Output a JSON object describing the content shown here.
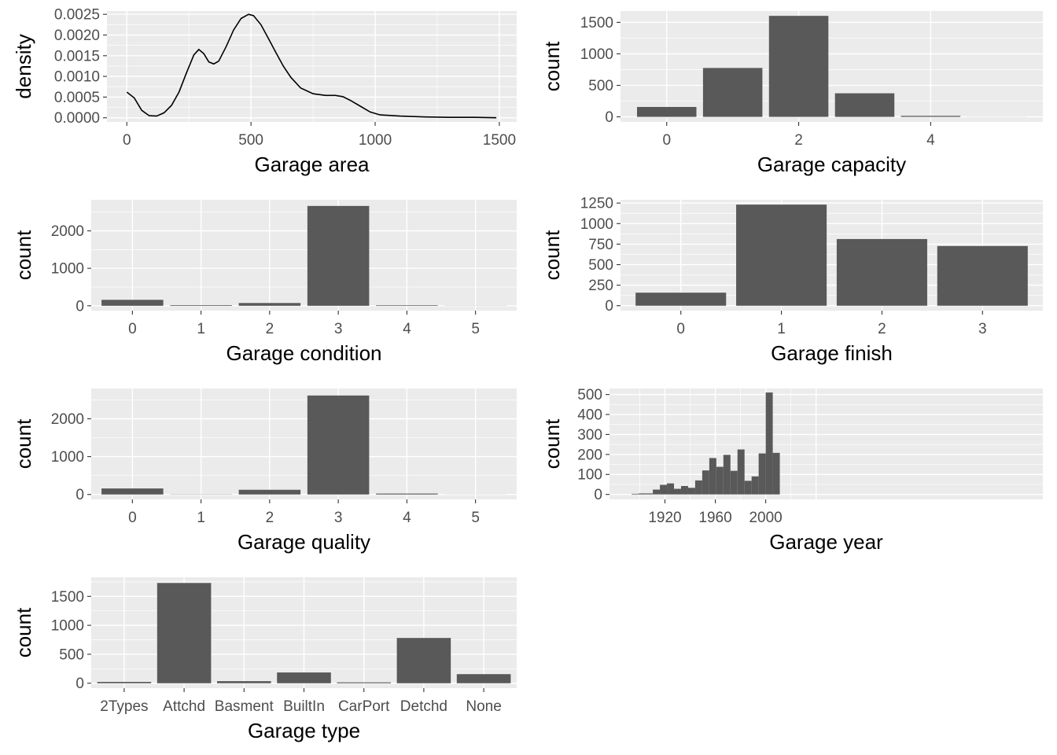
{
  "chart_data": [
    {
      "id": "area",
      "type": "line",
      "xlabel": "Garage area",
      "ylabel": "density",
      "xlim": [
        -80,
        1570
      ],
      "ylim": [
        -0.0001,
        0.00258
      ],
      "xticks": [
        0,
        500,
        1000,
        1500
      ],
      "xtick_labels": [
        "0",
        "500",
        "1000",
        "1500"
      ],
      "yticks": [
        0,
        0.0005,
        0.001,
        0.0015,
        0.002,
        0.0025
      ],
      "ytick_labels": [
        "0.0000",
        "0.0005",
        "0.0010",
        "0.0015",
        "0.0020",
        "0.0025"
      ],
      "x": [
        0,
        30,
        60,
        90,
        120,
        150,
        180,
        210,
        240,
        270,
        290,
        310,
        330,
        350,
        370,
        400,
        430,
        460,
        490,
        510,
        540,
        570,
        600,
        630,
        660,
        700,
        750,
        800,
        840,
        870,
        900,
        940,
        980,
        1020,
        1100,
        1200,
        1300,
        1400,
        1488
      ],
      "y": [
        0.00062,
        0.00048,
        0.00018,
        5e-05,
        4e-05,
        0.00012,
        0.0003,
        0.00062,
        0.00108,
        0.00152,
        0.00165,
        0.00155,
        0.00135,
        0.0013,
        0.00137,
        0.00172,
        0.00212,
        0.0024,
        0.0025,
        0.00247,
        0.00225,
        0.00192,
        0.00158,
        0.00125,
        0.00098,
        0.00072,
        0.00058,
        0.00054,
        0.00054,
        0.00051,
        0.00042,
        0.00028,
        0.00014,
        7e-05,
        4e-05,
        2e-05,
        1e-05,
        1e-05,
        0
      ]
    },
    {
      "id": "capacity",
      "type": "bar",
      "xlabel": "Garage capacity",
      "ylabel": "count",
      "xlim": [
        -0.7,
        5.7
      ],
      "ylim": [
        -80,
        1680
      ],
      "xticks": [
        0,
        2,
        4
      ],
      "xtick_labels": [
        "0",
        "2",
        "4"
      ],
      "yticks": [
        0,
        500,
        1000,
        1500
      ],
      "ytick_labels": [
        "0",
        "500",
        "1000",
        "1500"
      ],
      "categories": [
        0,
        1,
        2,
        3,
        4,
        5
      ],
      "values": [
        157,
        776,
        1603,
        374,
        16,
        1
      ]
    },
    {
      "id": "condition",
      "type": "bar",
      "xlabel": "Garage condition",
      "ylabel": "count",
      "xlim": [
        -0.6,
        5.6
      ],
      "ylim": [
        -130,
        2830
      ],
      "xticks": [
        0,
        1,
        2,
        3,
        4,
        5
      ],
      "xtick_labels": [
        "0",
        "1",
        "2",
        "3",
        "4",
        "5"
      ],
      "yticks": [
        0,
        1000,
        2000
      ],
      "ytick_labels": [
        "0",
        "1000",
        "2000"
      ],
      "categories": [
        0,
        1,
        2,
        3,
        4,
        5
      ],
      "values": [
        159,
        17,
        74,
        2665,
        15,
        3
      ]
    },
    {
      "id": "finish",
      "type": "bar",
      "xlabel": "Garage finish",
      "ylabel": "count",
      "xlim": [
        -0.6,
        3.6
      ],
      "ylim": [
        -60,
        1290
      ],
      "xticks": [
        0,
        1,
        2,
        3
      ],
      "xtick_labels": [
        "0",
        "1",
        "2",
        "3"
      ],
      "yticks": [
        0,
        250,
        500,
        750,
        1000,
        1250
      ],
      "ytick_labels": [
        "0",
        "250",
        "500",
        "750",
        "1000",
        "1250"
      ],
      "categories": [
        0,
        1,
        2,
        3
      ],
      "values": [
        159,
        1231,
        812,
        727
      ]
    },
    {
      "id": "quality",
      "type": "bar",
      "xlabel": "Garage quality",
      "ylabel": "count",
      "xlim": [
        -0.6,
        5.6
      ],
      "ylim": [
        -130,
        2800
      ],
      "xticks": [
        0,
        1,
        2,
        3,
        4,
        5
      ],
      "xtick_labels": [
        "0",
        "1",
        "2",
        "3",
        "4",
        "5"
      ],
      "yticks": [
        0,
        1000,
        2000
      ],
      "ytick_labels": [
        "0",
        "1000",
        "2000"
      ],
      "categories": [
        0,
        1,
        2,
        3,
        4,
        5
      ],
      "values": [
        159,
        5,
        124,
        2615,
        24,
        2
      ]
    },
    {
      "id": "year",
      "type": "bar",
      "xlabel": "Garage year",
      "ylabel": "count",
      "xlim": [
        1876,
        2220
      ],
      "ylim": [
        -25,
        530
      ],
      "xticks": [
        1920,
        1960,
        2000
      ],
      "xtick_labels": [
        "1920",
        "1960",
        "2000"
      ],
      "yticks": [
        0,
        100,
        200,
        300,
        400,
        500
      ],
      "ytick_labels": [
        "0",
        "100",
        "200",
        "300",
        "400",
        "500"
      ],
      "bin_width": 5.6,
      "bin_starts": [
        1893.6,
        1899.2,
        1904.8,
        1910.4,
        1916,
        1921.6,
        1927.2,
        1932.8,
        1938.4,
        1944,
        1949.6,
        1955.2,
        1960.8,
        1966.4,
        1972,
        1977.6,
        1983.2,
        1988.8,
        1994.4,
        2000,
        2005.6
      ],
      "values": [
        3,
        5,
        5,
        24,
        48,
        55,
        28,
        42,
        33,
        70,
        120,
        182,
        138,
        198,
        118,
        225,
        68,
        90,
        205,
        510,
        208
      ],
      "extra_bars": [
        {
          "x": 1899,
          "width": 6,
          "value": 5
        },
        {
          "x": 1910.5,
          "width": 5.5,
          "value": 20
        },
        {
          "x": 1927,
          "width": 6,
          "value": 28
        },
        {
          "x": 1947,
          "width": 6,
          "value": 38
        },
        {
          "x": 1985,
          "width": 6,
          "value": 85
        },
        {
          "x": 2009.9,
          "width": 1.5,
          "value": 205
        }
      ]
    },
    {
      "id": "type",
      "type": "bar",
      "xlabel": "Garage type",
      "ylabel": "count",
      "xlim": [
        -0.55,
        6.55
      ],
      "ylim": [
        -85,
        1830
      ],
      "xticks": [
        0,
        1,
        2,
        3,
        4,
        5,
        6
      ],
      "xtick_labels": [
        "2Types",
        "Attchd",
        "Basment",
        "BuiltIn",
        "CarPort",
        "Detchd",
        "None"
      ],
      "yticks": [
        0,
        500,
        1000,
        1500
      ],
      "ytick_labels": [
        "0",
        "500",
        "1000",
        "1500"
      ],
      "categories": [
        "2Types",
        "Attchd",
        "Basment",
        "BuiltIn",
        "CarPort",
        "Detchd",
        "None"
      ],
      "values": [
        23,
        1731,
        36,
        186,
        15,
        782,
        157
      ]
    }
  ]
}
